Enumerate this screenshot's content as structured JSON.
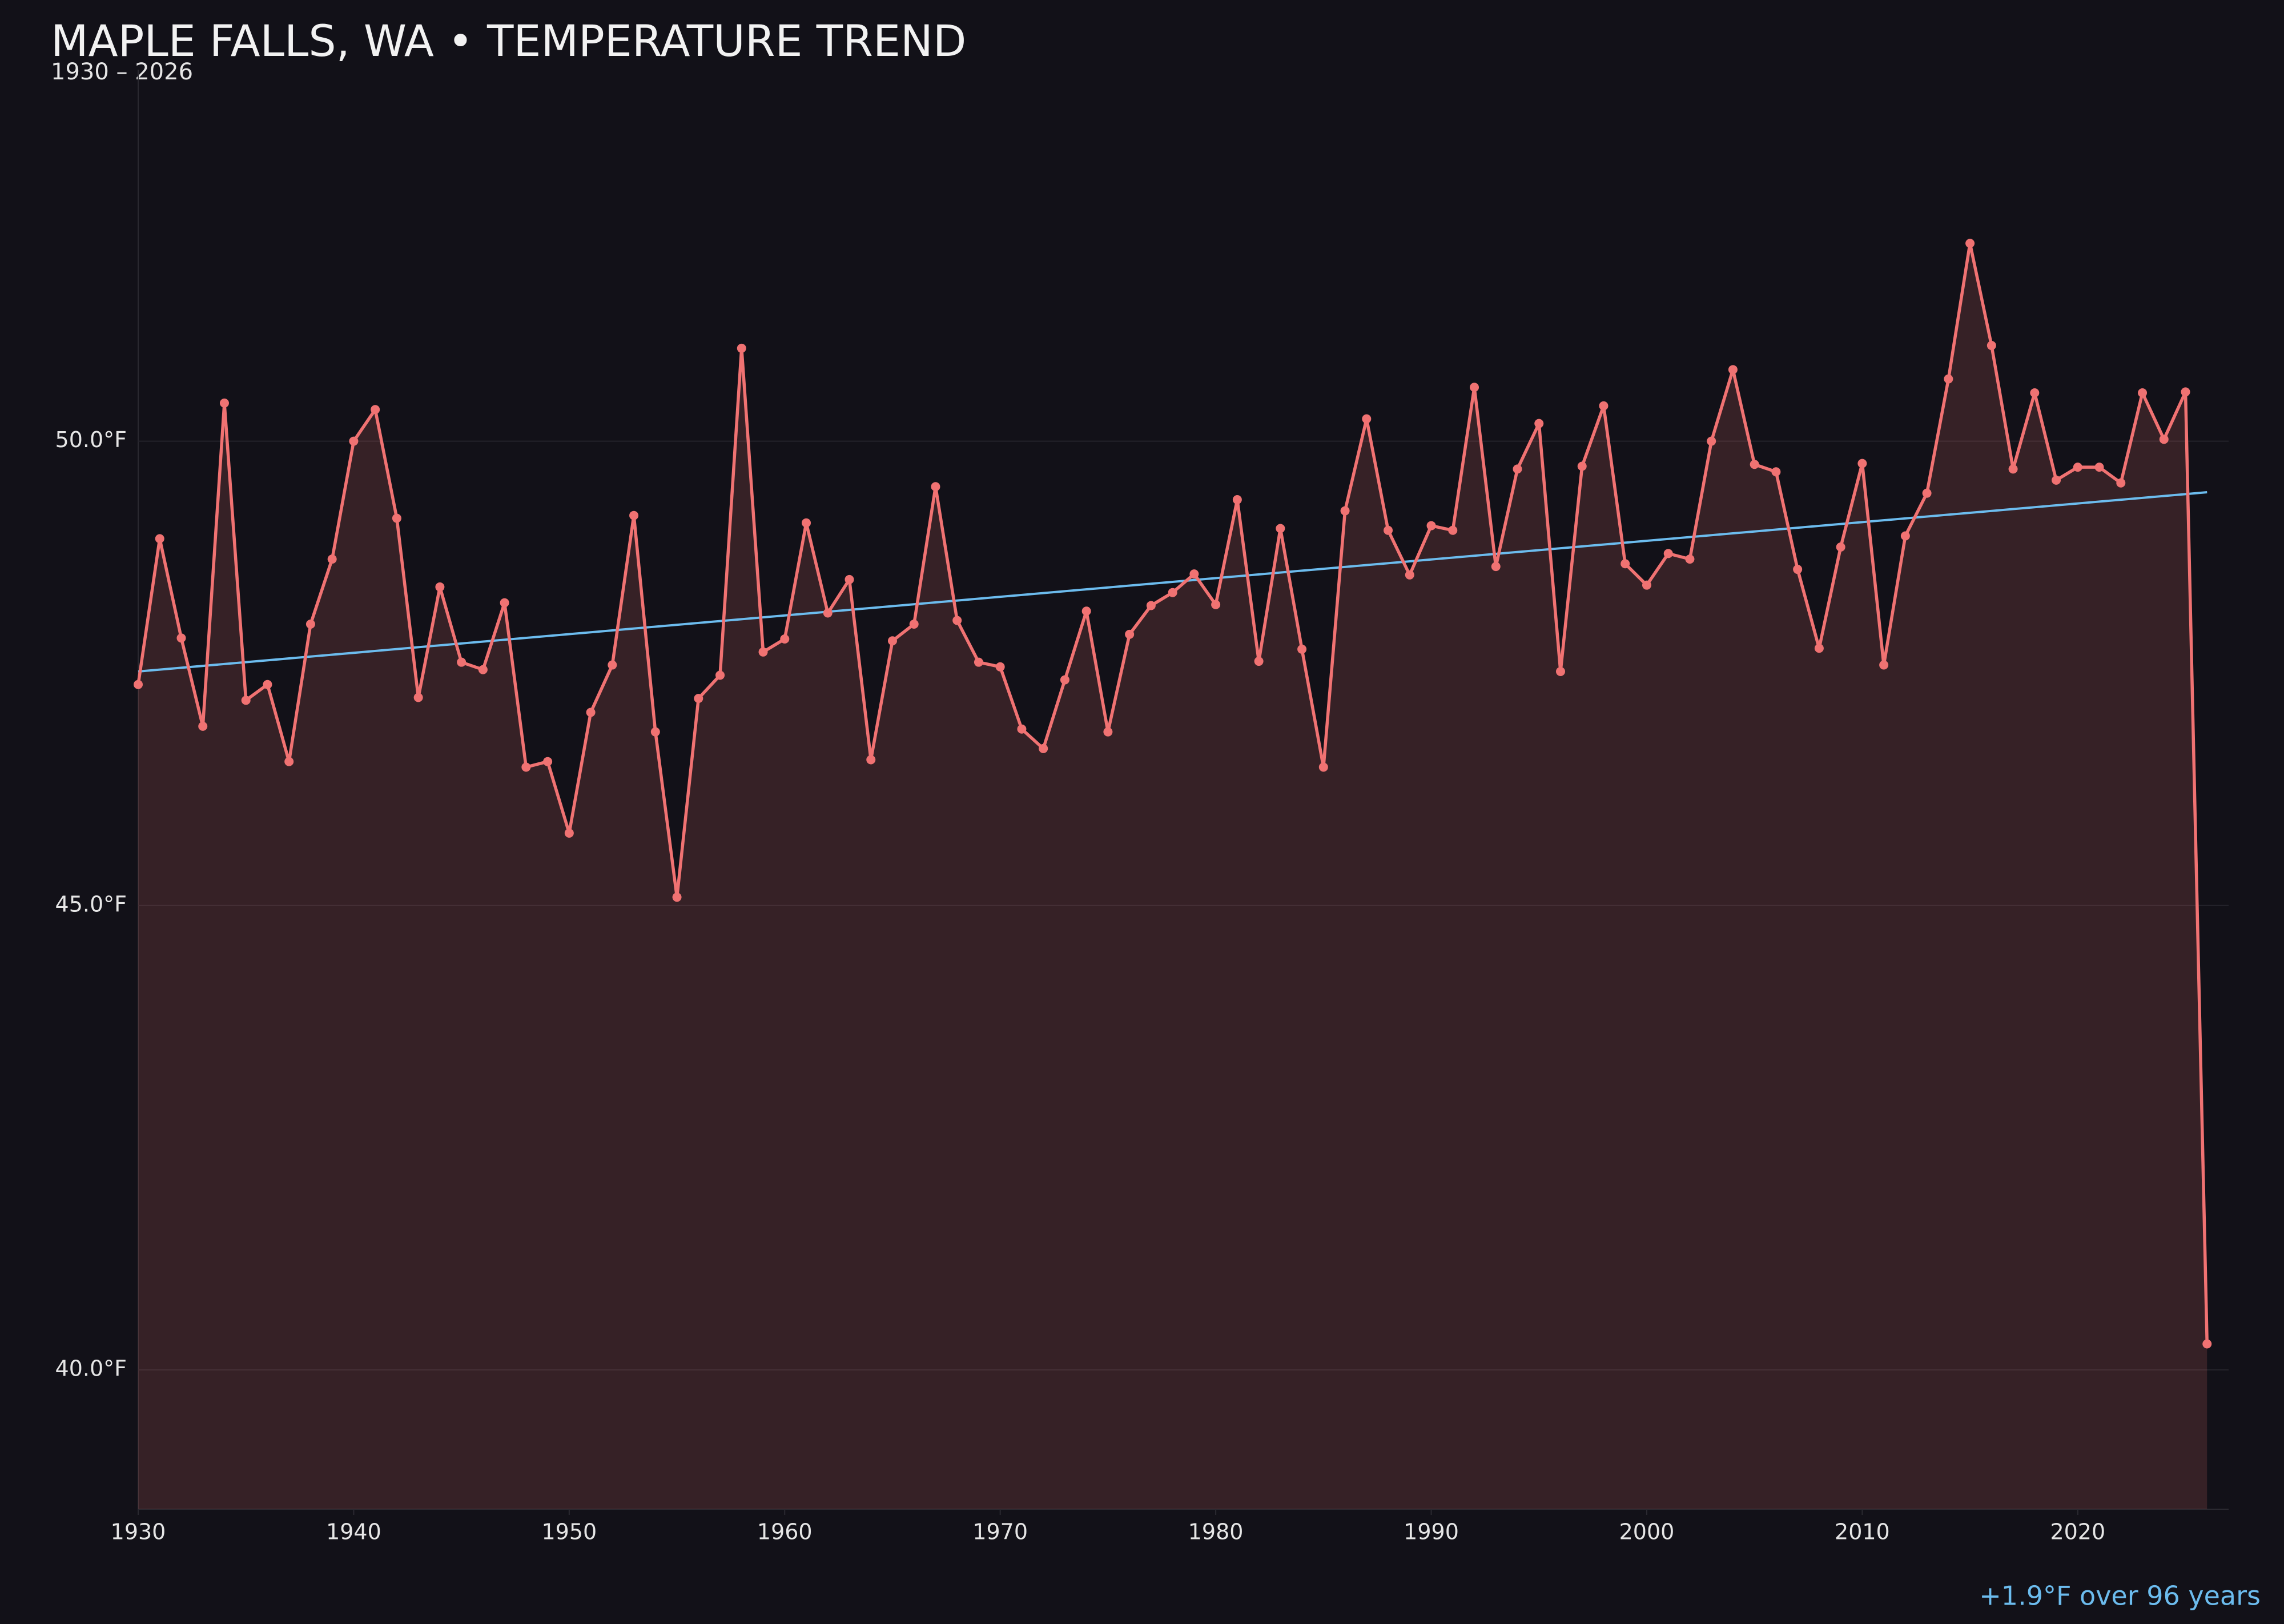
{
  "chart_data": {
    "type": "line",
    "title": "MAPLE FALLS, WA • TEMPERATURE TREND",
    "subtitle": "1930 – 2026",
    "annotation": "+1.9°F over 96 years",
    "x": [
      1930,
      1931,
      1932,
      1933,
      1934,
      1935,
      1936,
      1937,
      1938,
      1939,
      1940,
      1941,
      1942,
      1943,
      1944,
      1945,
      1946,
      1947,
      1948,
      1949,
      1950,
      1951,
      1952,
      1953,
      1954,
      1955,
      1956,
      1957,
      1958,
      1959,
      1960,
      1961,
      1962,
      1963,
      1964,
      1965,
      1966,
      1967,
      1968,
      1969,
      1970,
      1971,
      1972,
      1973,
      1974,
      1975,
      1976,
      1977,
      1978,
      1979,
      1980,
      1981,
      1982,
      1983,
      1984,
      1985,
      1986,
      1987,
      1988,
      1989,
      1990,
      1991,
      1992,
      1993,
      1994,
      1995,
      1996,
      1997,
      1998,
      1999,
      2000,
      2001,
      2002,
      2003,
      2004,
      2005,
      2006,
      2007,
      2008,
      2009,
      2010,
      2011,
      2012,
      2013,
      2014,
      2015,
      2016,
      2017,
      2018,
      2019,
      2020,
      2021,
      2022,
      2023,
      2024,
      2025,
      2026
    ],
    "series": [
      {
        "color": "#f07272",
        "fill": "rgba(240,114,114,0.17)",
        "values": [
          47.38,
          48.95,
          47.88,
          46.93,
          50.41,
          47.21,
          47.38,
          46.55,
          48.03,
          48.73,
          50.0,
          50.34,
          49.17,
          47.24,
          48.43,
          47.62,
          47.54,
          48.26,
          46.49,
          46.55,
          45.78,
          47.08,
          47.59,
          49.2,
          46.87,
          45.09,
          47.23,
          47.48,
          51.0,
          47.73,
          47.87,
          49.12,
          48.15,
          48.51,
          46.57,
          47.85,
          48.03,
          49.51,
          48.07,
          47.62,
          47.57,
          46.9,
          46.69,
          47.43,
          48.17,
          46.87,
          47.92,
          48.23,
          48.37,
          48.57,
          48.24,
          49.37,
          47.63,
          49.06,
          47.76,
          46.49,
          49.25,
          50.24,
          49.04,
          48.56,
          49.09,
          49.04,
          50.58,
          48.65,
          49.7,
          50.19,
          47.52,
          49.73,
          50.38,
          48.68,
          48.45,
          48.79,
          48.73,
          50.0,
          50.77,
          49.75,
          49.67,
          48.62,
          47.77,
          48.86,
          49.76,
          47.59,
          48.98,
          49.44,
          50.67,
          52.13,
          51.03,
          49.7,
          50.52,
          49.58,
          49.72,
          49.72,
          49.55,
          50.52,
          50.02,
          50.53,
          40.28
        ]
      }
    ],
    "trend": {
      "color": "#6cbcee",
      "x": [
        1930,
        2026
      ],
      "values": [
        47.52,
        49.45
      ]
    },
    "xlim": [
      1930,
      2027
    ],
    "ylim": [
      38.5,
      54
    ],
    "xticks": [
      1930,
      1940,
      1950,
      1960,
      1970,
      1980,
      1990,
      2000,
      2010,
      2020
    ],
    "yticks": [
      {
        "value": 40,
        "label": "40.0°F"
      },
      {
        "value": 45,
        "label": "45.0°F"
      },
      {
        "value": 50,
        "label": "50.0°F"
      }
    ],
    "grid": true
  }
}
